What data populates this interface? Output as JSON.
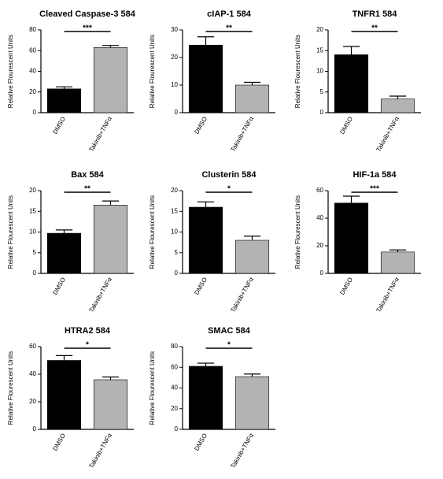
{
  "chart_data": [
    {
      "type": "bar",
      "title": "Cleaved Caspase-3 584",
      "ylabel": "Relative Flourescent Units",
      "categories": [
        "DMSO",
        "Takinib+TNFα"
      ],
      "values": [
        23,
        63
      ],
      "errors": [
        2,
        2
      ],
      "colors": [
        "#000000",
        "#b3b3b3"
      ],
      "ylim": [
        0,
        80
      ],
      "yticks": [
        0,
        20,
        40,
        60,
        80
      ],
      "significance": "***"
    },
    {
      "type": "bar",
      "title": "cIAP-1 584",
      "ylabel": "Relative Flourescent Units",
      "categories": [
        "DMSO",
        "Takinib+TNFα"
      ],
      "values": [
        24.5,
        10
      ],
      "errors": [
        3,
        1
      ],
      "colors": [
        "#000000",
        "#b3b3b3"
      ],
      "ylim": [
        0,
        30
      ],
      "yticks": [
        0,
        10,
        20,
        30
      ],
      "significance": "**"
    },
    {
      "type": "bar",
      "title": "TNFR1 584",
      "ylabel": "Relative Flourescent Units",
      "categories": [
        "DMSO",
        "Takinib+TNFα"
      ],
      "values": [
        14,
        3.3
      ],
      "errors": [
        2,
        0.7
      ],
      "colors": [
        "#000000",
        "#b3b3b3"
      ],
      "ylim": [
        0,
        20
      ],
      "yticks": [
        0,
        5,
        10,
        15,
        20
      ],
      "significance": "**"
    },
    {
      "type": "bar",
      "title": "Bax 584",
      "ylabel": "Relative Flourescent Units",
      "categories": [
        "DMSO",
        "Takinib+TNFα"
      ],
      "values": [
        9.7,
        16.5
      ],
      "errors": [
        0.8,
        1
      ],
      "colors": [
        "#000000",
        "#b3b3b3"
      ],
      "ylim": [
        0,
        20
      ],
      "yticks": [
        0,
        5,
        10,
        15,
        20
      ],
      "significance": "**"
    },
    {
      "type": "bar",
      "title": "Clusterin 584",
      "ylabel": "Relative Flourescent Units",
      "categories": [
        "DMSO",
        "Takinib+TNFα"
      ],
      "values": [
        16,
        8
      ],
      "errors": [
        1.3,
        1
      ],
      "colors": [
        "#000000",
        "#b3b3b3"
      ],
      "ylim": [
        0,
        20
      ],
      "yticks": [
        0,
        5,
        10,
        15,
        20
      ],
      "significance": "*"
    },
    {
      "type": "bar",
      "title": "HIF-1a 584",
      "ylabel": "Relative Flourescent Units",
      "categories": [
        "DMSO",
        "Takinib+TNFα"
      ],
      "values": [
        51,
        15.5
      ],
      "errors": [
        5,
        1.5
      ],
      "colors": [
        "#000000",
        "#b3b3b3"
      ],
      "ylim": [
        0,
        60
      ],
      "yticks": [
        0,
        20,
        40,
        60
      ],
      "significance": "***"
    },
    {
      "type": "bar",
      "title": "HTRA2 584",
      "ylabel": "Relative Flourescent Units",
      "categories": [
        "DMSO",
        "Takinib+TNFα"
      ],
      "values": [
        50,
        36
      ],
      "errors": [
        3.5,
        2
      ],
      "colors": [
        "#000000",
        "#b3b3b3"
      ],
      "ylim": [
        0,
        60
      ],
      "yticks": [
        0,
        20,
        40,
        60
      ],
      "significance": "*"
    },
    {
      "type": "bar",
      "title": "SMAC 584",
      "ylabel": "Relative Flourescent Units",
      "categories": [
        "DMSO",
        "Takinib+TNFα"
      ],
      "values": [
        61,
        51
      ],
      "errors": [
        3,
        2.5
      ],
      "colors": [
        "#000000",
        "#b3b3b3"
      ],
      "ylim": [
        0,
        80
      ],
      "yticks": [
        0,
        20,
        40,
        60,
        80
      ],
      "significance": "*"
    }
  ]
}
